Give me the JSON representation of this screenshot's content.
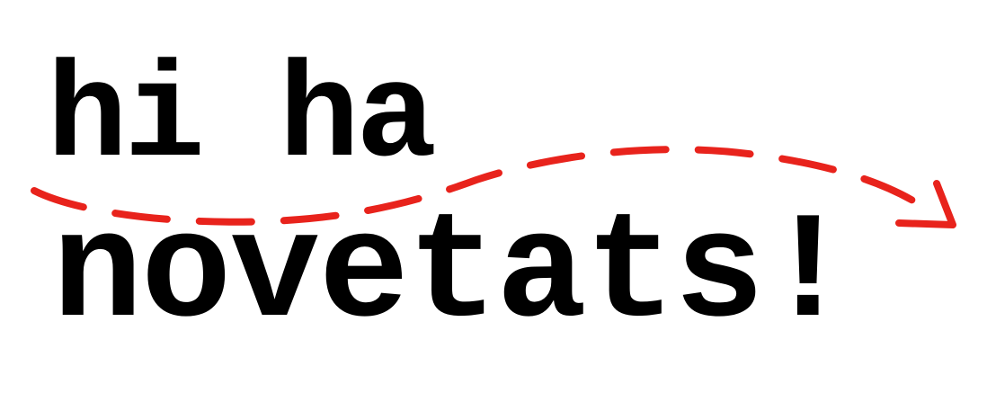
{
  "logo": {
    "line1": "hi ha",
    "line2": "novetats!",
    "arrow_icon": "dashed-curved-arrow-right",
    "colors": {
      "text": "#000000",
      "arrow": "#e8231c",
      "background": "#ffffff"
    }
  }
}
